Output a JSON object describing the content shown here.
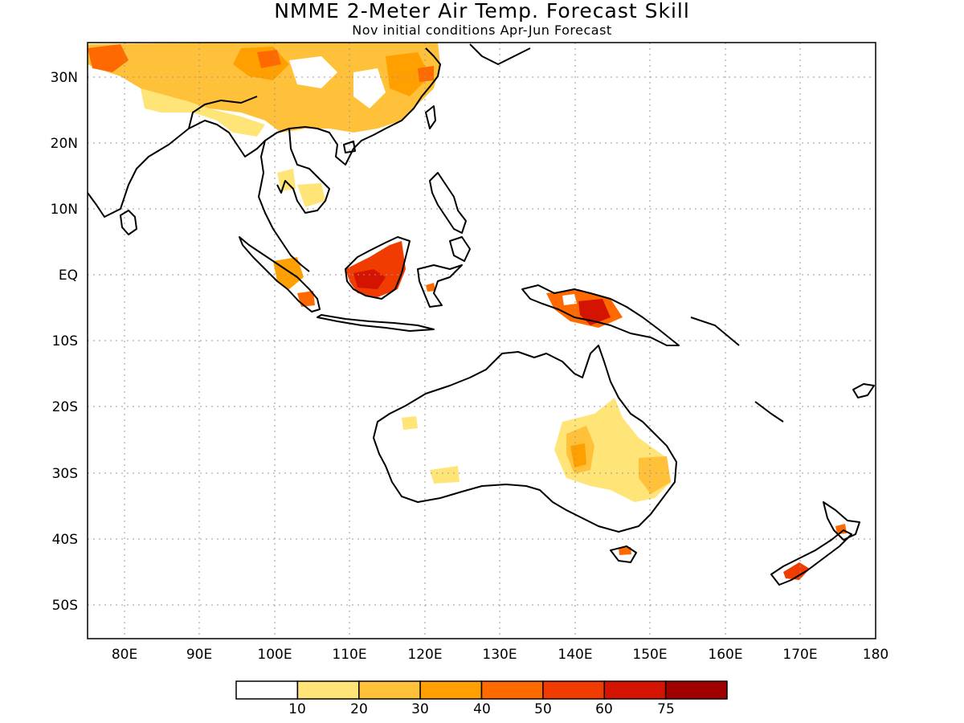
{
  "map": {
    "title": "NMME 2-Meter Air Temp. Forecast Skill",
    "subtitle": "Nov initial conditions  Apr-Jun Forecast",
    "lon_labels": [
      "80E",
      "90E",
      "100E",
      "110E",
      "120E",
      "130E",
      "140E",
      "150E",
      "160E",
      "170E",
      "180"
    ],
    "lat_labels": [
      "30N",
      "20N",
      "10N",
      "EQ",
      "10S",
      "20S",
      "30S",
      "40S",
      "50S"
    ],
    "lon_range": [
      75,
      180
    ],
    "lat_range": [
      -55,
      35
    ],
    "grid": "dotted"
  },
  "colorbar": {
    "labels": [
      "10",
      "20",
      "30",
      "40",
      "50",
      "60",
      "75"
    ],
    "colors": [
      "#ffffff",
      "#ffe478",
      "#ffc03a",
      "#ffa000",
      "#ff6a00",
      "#f03c00",
      "#d41400",
      "#a00000"
    ]
  }
}
